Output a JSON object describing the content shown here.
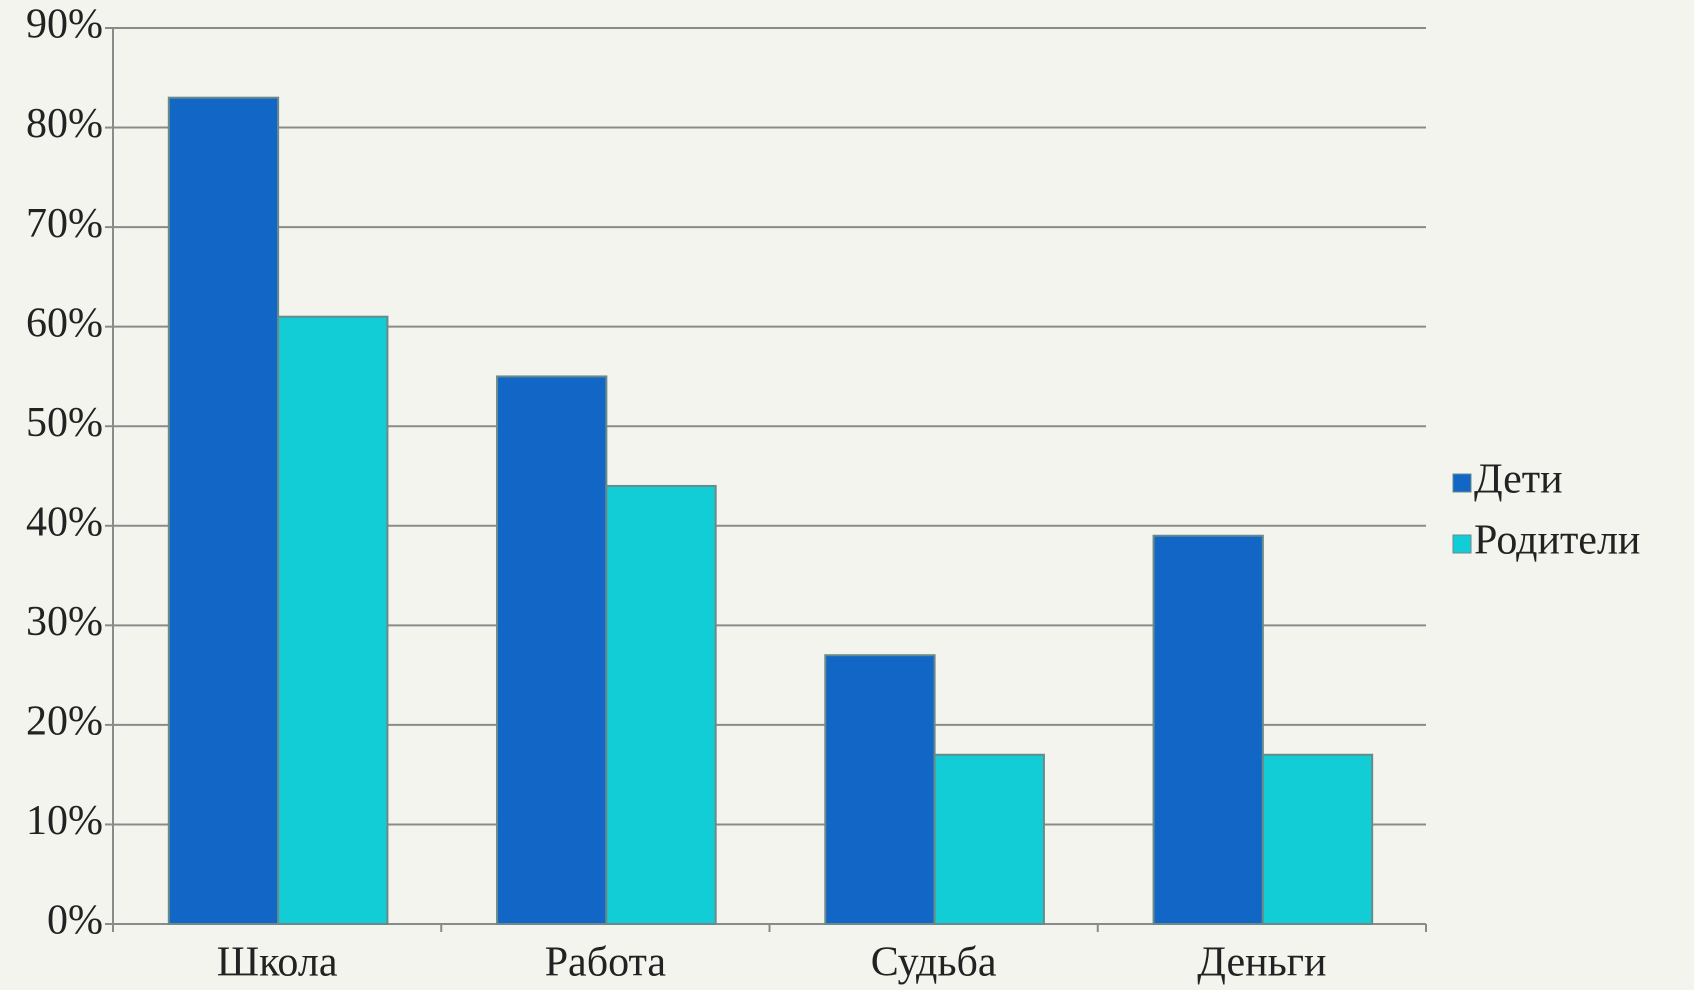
{
  "chart_data": {
    "type": "bar",
    "categories": [
      "Школа",
      "Работа",
      "Судьба",
      "Деньги"
    ],
    "series": [
      {
        "name": "Дети",
        "color": "#1166c6",
        "values": [
          83,
          55,
          27,
          39
        ]
      },
      {
        "name": "Родители",
        "color": "#12cdd6",
        "values": [
          61,
          44,
          17,
          17
        ]
      }
    ],
    "ylim": [
      0,
      90
    ],
    "yticks": [
      {
        "value": 0,
        "label": "0%"
      },
      {
        "value": 10,
        "label": "10%"
      },
      {
        "value": 20,
        "label": "20%"
      },
      {
        "value": 30,
        "label": "30%"
      },
      {
        "value": 40,
        "label": "40%"
      },
      {
        "value": 50,
        "label": "50%"
      },
      {
        "value": 60,
        "label": "60%"
      },
      {
        "value": 70,
        "label": "70%"
      },
      {
        "value": 80,
        "label": "80%"
      },
      {
        "value": 90,
        "label": "90%"
      }
    ],
    "grid": true,
    "legend": "right"
  }
}
